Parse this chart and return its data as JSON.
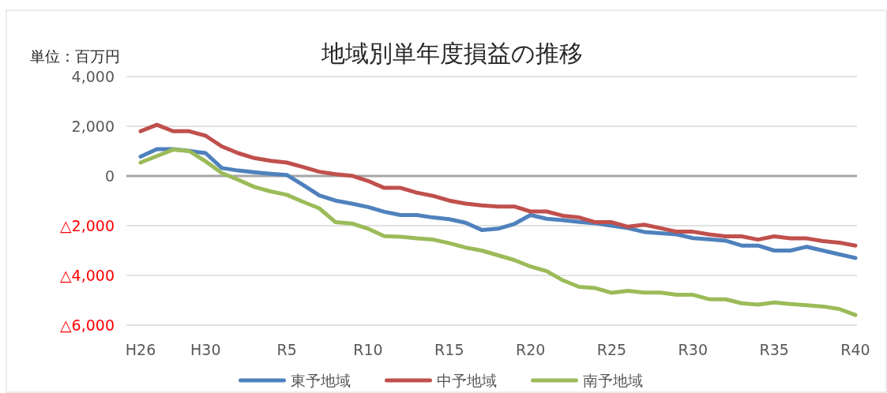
{
  "chart_data": {
    "type": "line",
    "title": "地域別単年度損益の推移",
    "annotations": [
      "単位：百万円"
    ],
    "categories": [
      "H26",
      null,
      null,
      null,
      "H30",
      null,
      null,
      null,
      null,
      "R5",
      null,
      null,
      null,
      null,
      "R10",
      null,
      null,
      null,
      null,
      "R15",
      null,
      null,
      null,
      null,
      "R20",
      null,
      null,
      null,
      null,
      "R25",
      null,
      null,
      null,
      null,
      "R30",
      null,
      null,
      null,
      null,
      "R35",
      null,
      null,
      null,
      null,
      "R40"
    ],
    "series": [
      {
        "name": "東予地域",
        "color": "#4f81bd",
        "values": [
          780,
          1080,
          1080,
          1010,
          920,
          320,
          220,
          150,
          90,
          40,
          -360,
          -780,
          -990,
          -1110,
          -1250,
          -1440,
          -1570,
          -1570,
          -1670,
          -1740,
          -1880,
          -2170,
          -2120,
          -1930,
          -1570,
          -1720,
          -1780,
          -1850,
          -1900,
          -2000,
          -2100,
          -2250,
          -2300,
          -2350,
          -2500,
          -2550,
          -2600,
          -2800,
          -2800,
          -3000,
          -3000,
          -2850,
          -3000,
          -3150,
          -3300
        ]
      },
      {
        "name": "中予地域",
        "color": "#c0504d",
        "values": [
          1800,
          2060,
          1800,
          1800,
          1620,
          1190,
          920,
          720,
          610,
          540,
          360,
          170,
          70,
          10,
          -200,
          -480,
          -480,
          -670,
          -800,
          -990,
          -1110,
          -1180,
          -1230,
          -1230,
          -1430,
          -1430,
          -1600,
          -1670,
          -1860,
          -1860,
          -2040,
          -1960,
          -2100,
          -2240,
          -2240,
          -2350,
          -2430,
          -2430,
          -2560,
          -2430,
          -2510,
          -2510,
          -2620,
          -2680,
          -2800
        ]
      },
      {
        "name": "南予地域",
        "color": "#9bbb59",
        "values": [
          540,
          800,
          1060,
          1000,
          590,
          120,
          -150,
          -440,
          -620,
          -760,
          -1040,
          -1300,
          -1860,
          -1910,
          -2120,
          -2420,
          -2440,
          -2510,
          -2560,
          -2700,
          -2880,
          -3000,
          -3190,
          -3380,
          -3640,
          -3830,
          -4200,
          -4460,
          -4510,
          -4700,
          -4620,
          -4690,
          -4690,
          -4780,
          -4780,
          -4960,
          -4960,
          -5120,
          -5170,
          -5090,
          -5150,
          -5200,
          -5250,
          -5350,
          -5590
        ]
      }
    ],
    "ylim": [
      -6000,
      4000
    ],
    "yticks": [
      {
        "value": 4000,
        "label": "4,000"
      },
      {
        "value": 2000,
        "label": "2,000"
      },
      0,
      {
        "value": -2000,
        "label": "△2,000"
      },
      {
        "value": -4000,
        "label": "△4,000"
      },
      {
        "value": -6000,
        "label": "△6,000"
      }
    ],
    "ref_lines": [
      {
        "axis": "y",
        "value": 0,
        "color": "#a6a6a6"
      }
    ],
    "grid": "y",
    "legend": "bottom",
    "marker": "none",
    "line_style": "solid"
  }
}
